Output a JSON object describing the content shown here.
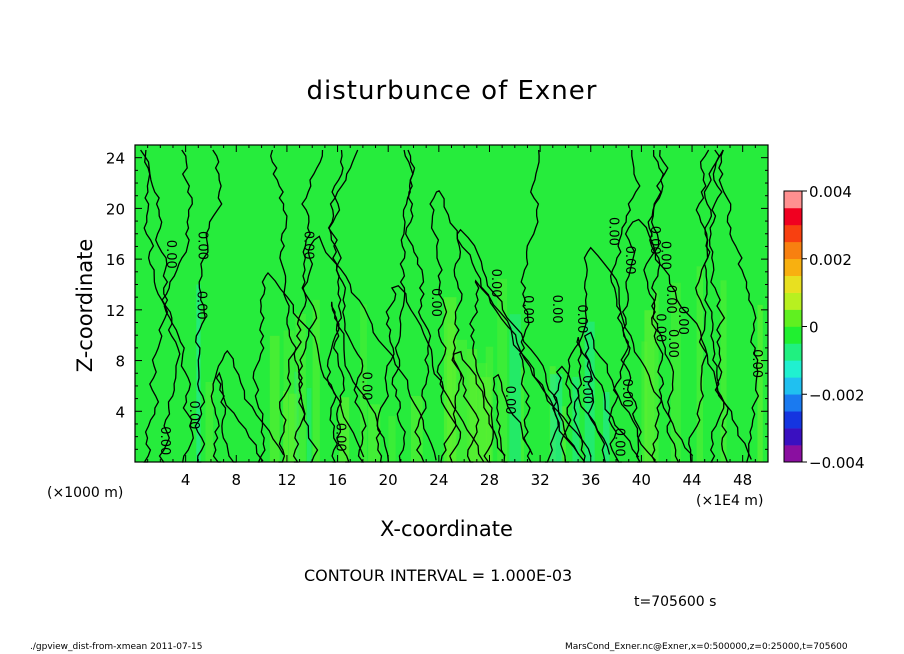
{
  "chart_data": {
    "type": "heatmap",
    "title": "disturbunce of Exner",
    "xlabel": "X-coordinate",
    "ylabel": "Z-coordinate",
    "x_unit_left": "(×1000 m)",
    "x_unit_right": "(×1E4 m)",
    "xlim": [
      0,
      50
    ],
    "ylim": [
      0,
      25
    ],
    "x_ticks": [
      4,
      8,
      12,
      16,
      20,
      24,
      28,
      32,
      36,
      40,
      44,
      48
    ],
    "y_ticks": [
      4,
      8,
      12,
      16,
      20,
      24
    ],
    "colorbar": {
      "min": -0.004,
      "max": 0.004,
      "ticks": [
        {
          "value": 0.004,
          "label": "0.004"
        },
        {
          "value": 0.002,
          "label": "0.002"
        },
        {
          "value": 0,
          "label": "0"
        },
        {
          "value": -0.002,
          "label": "−0.002"
        },
        {
          "value": -0.004,
          "label": "−0.004"
        }
      ],
      "colors": [
        "#8a0fa0",
        "#3a10c0",
        "#1535e0",
        "#1a7af0",
        "#20c0f0",
        "#20f0d0",
        "#20f080",
        "#20f030",
        "#60f020",
        "#b8f020",
        "#e8e020",
        "#f8b010",
        "#f88010",
        "#f84010",
        "#f00020",
        "#ff9090"
      ]
    },
    "field_color": "#26ec3c",
    "contour_label": "0.00",
    "contour_interval": "CONTOUR INTERVAL = 1.000E-03"
  },
  "time_label": "t=705600 s",
  "footer_left": "./gpview_dist-from-xmean 2011-07-15",
  "footer_right": "MarsCond_Exner.nc@Exner,x=0:500000,z=0:25000,t=705600"
}
